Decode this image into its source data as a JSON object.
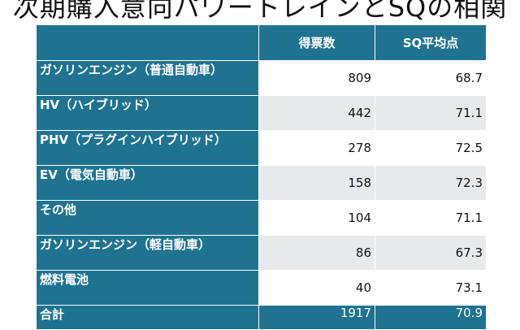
{
  "title": "次期購入意向パワートレインとSQの相関",
  "table": {
    "columns": [
      "",
      "得票数",
      "SQ平均点"
    ],
    "rows": [
      {
        "label": "ガソリンエンジン（普通自動車）",
        "votes": "809",
        "sq": "68.7"
      },
      {
        "label": "HV（ハイブリッド）",
        "votes": "442",
        "sq": "71.1"
      },
      {
        "label": "PHV（プラグインハイブリッド）",
        "votes": "278",
        "sq": "72.5"
      },
      {
        "label": "EV（電気自動車）",
        "votes": "158",
        "sq": "72.3"
      },
      {
        "label": "その他",
        "votes": "104",
        "sq": "71.1"
      },
      {
        "label": "ガソリンエンジン（軽自動車）",
        "votes": "86",
        "sq": "67.3"
      },
      {
        "label": "燃料電池",
        "votes": "40",
        "sq": "73.1"
      }
    ],
    "total": {
      "label": "合計",
      "votes": "1917",
      "sq": "70.9"
    }
  },
  "colors": {
    "header": "#1f7391",
    "row_alt": "#e7e9ea",
    "row": "#ffffff"
  }
}
